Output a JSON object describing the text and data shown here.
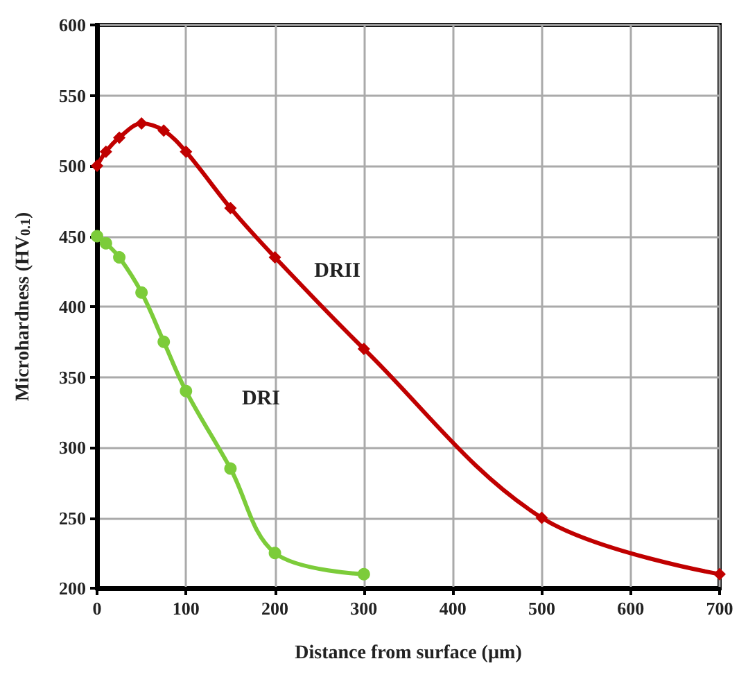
{
  "chart_data": {
    "type": "line",
    "xlabel": "Distance from surface (µm)",
    "ylabel": "Microhardness (HV$_{0.1}$)",
    "xlim": [
      0,
      700
    ],
    "xticks": [
      0,
      100,
      200,
      300,
      400,
      500,
      600,
      700
    ],
    "ylim": [
      200,
      600
    ],
    "yticks": [
      200,
      250,
      300,
      350,
      400,
      450,
      500,
      550,
      600
    ],
    "grid": true,
    "legend": false,
    "line_style": "solid",
    "series": [
      {
        "name": "DRII",
        "color": "#c00000",
        "marker": "diamond",
        "x": [
          0,
          10,
          25,
          50,
          75,
          100,
          150,
          200,
          300,
          500,
          700
        ],
        "values": [
          500,
          510,
          520,
          530,
          525,
          510,
          470,
          435,
          370,
          250,
          210
        ]
      },
      {
        "name": "DRI",
        "color": "#7ccc3a",
        "marker": "circle",
        "x": [
          0,
          10,
          25,
          50,
          75,
          100,
          150,
          200,
          300
        ],
        "values": [
          450,
          445,
          435,
          410,
          375,
          340,
          285,
          225,
          210
        ]
      }
    ]
  }
}
